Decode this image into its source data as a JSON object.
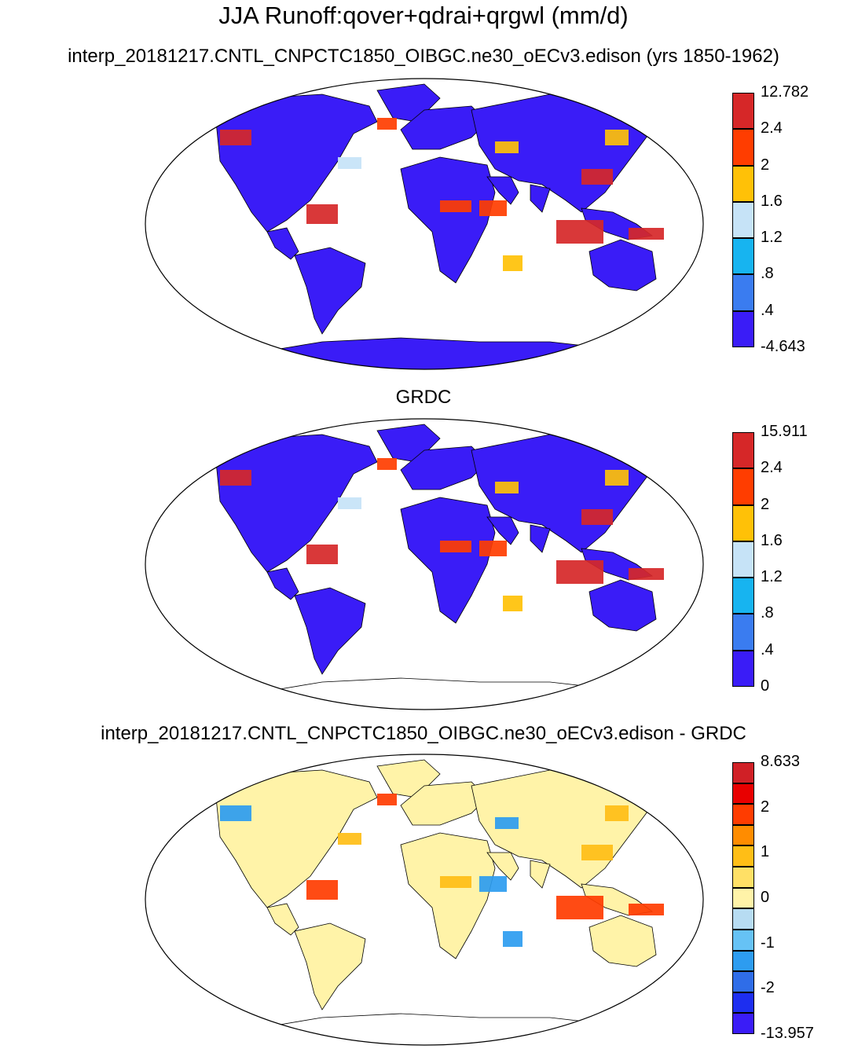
{
  "title": "JJA Runoff:qover+qdrai+qrgwl (mm/d)",
  "panels": [
    {
      "title": "interp_20181217.CNTL_CNPCTC1850_OIBGC.ne30_oECv3.edison (yrs 1850-1962)",
      "colorbar_labels": [
        "12.782",
        "2.4",
        "2",
        "1.6",
        "1.2",
        ".8",
        ".4",
        "-4.643"
      ],
      "colors": [
        "#d62728",
        "#ff3d00",
        "#ffc107",
        "#c6e3f7",
        "#17b4f0",
        "#3a7cf0",
        "#3a1cf7"
      ],
      "land_color": "#3a1cf7"
    },
    {
      "title": "GRDC",
      "colorbar_labels": [
        "15.911",
        "2.4",
        "2",
        "1.6",
        "1.2",
        ".8",
        ".4",
        "0"
      ],
      "colors": [
        "#d62728",
        "#ff3d00",
        "#ffc107",
        "#c6e3f7",
        "#17b4f0",
        "#3a7cf0",
        "#3a1cf7"
      ],
      "land_color": "#3a1cf7"
    },
    {
      "title": "interp_20181217.CNTL_CNPCTC1850_OIBGC.ne30_oECv3.edison - GRDC",
      "colorbar_labels": [
        "8.633",
        "2",
        "1",
        "0",
        "-1",
        "-2",
        "-13.957"
      ],
      "colors": [
        "#d02026",
        "#e80000",
        "#ff3c00",
        "#ff8c00",
        "#ffbe16",
        "#ffe066",
        "#fff3a8",
        "#b7dcf2",
        "#66c2f5",
        "#2d9cf0",
        "#2f6de8",
        "#1d2ef0",
        "#3a1cf7"
      ],
      "land_color": "#fff3a8"
    }
  ]
}
